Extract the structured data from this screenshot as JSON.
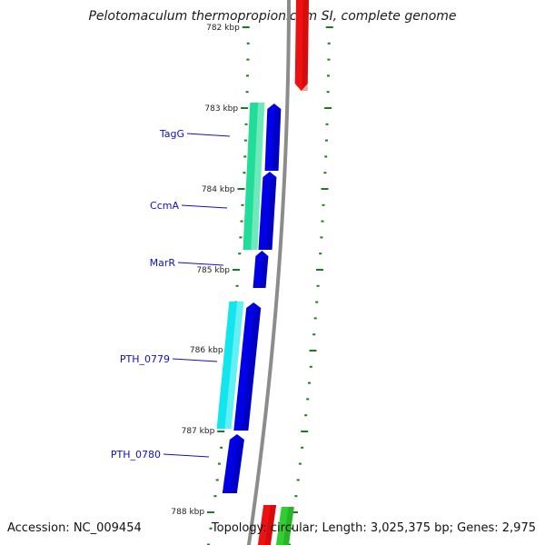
{
  "title": "Pelotomaculum thermopropionicum SI, complete genome",
  "footer": {
    "accession": "Accession: NC_009454",
    "stats": "Topology: circular; Length: 3,025,375 bp; Genes: 2,975"
  },
  "kbp_labels": [
    "782 kbp",
    "783 kbp",
    "784 kbp",
    "785 kbp",
    "786 kbp",
    "787 kbp",
    "788 kbp"
  ],
  "genes": [
    "TagG",
    "CcmA",
    "MarR",
    "PTH_0779",
    "PTH_0780"
  ],
  "colors": {
    "backbone": "#8c8c8c",
    "tick": "#1f7a1f",
    "forward_cds": "#0000e6",
    "reverse_red": "#ee1111",
    "reverse_green": "#33cc33",
    "cog_teal": "#22dd99",
    "cog_cyan": "#11e6ee",
    "label": "#1010c0"
  }
}
